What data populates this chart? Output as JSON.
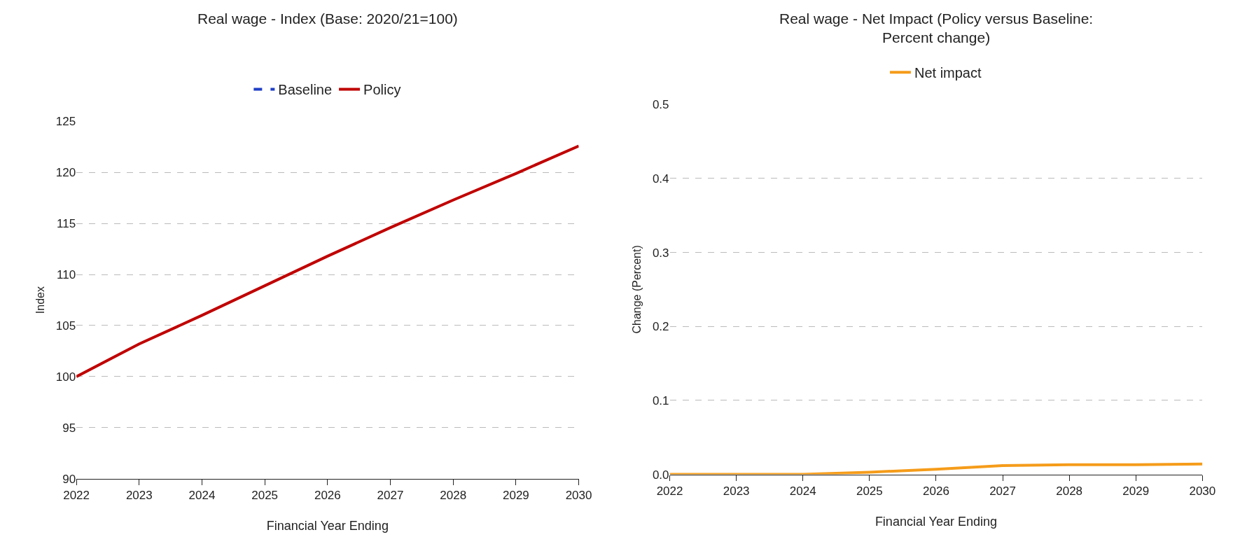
{
  "chart_data": [
    {
      "type": "line",
      "title": "Real wage - Index (Base: 2020/21=100)",
      "xlabel": "Financial Year Ending",
      "ylabel": "Index",
      "x": [
        2022,
        2023,
        2024,
        2025,
        2026,
        2027,
        2028,
        2029,
        2030
      ],
      "series": [
        {
          "name": "Baseline",
          "color": "#1f3fc6",
          "line_style": "dashed",
          "values": [
            null,
            null,
            null,
            null,
            null,
            null,
            null,
            null,
            null
          ]
        },
        {
          "name": "Policy",
          "color": "#c00000",
          "line_style": "solid",
          "values": [
            100,
            103.2,
            106.0,
            108.9,
            111.8,
            114.6,
            117.3,
            119.9,
            122.6
          ]
        }
      ],
      "xlim": [
        2022,
        2030
      ],
      "xticks": [
        2022,
        2023,
        2024,
        2025,
        2026,
        2027,
        2028,
        2029,
        2030
      ],
      "ylim": [
        90,
        125
      ],
      "yticks": [
        90,
        95,
        100,
        105,
        110,
        115,
        120,
        125
      ],
      "grid": "y",
      "legend": "top",
      "marker": "none"
    },
    {
      "type": "line",
      "title": "Real wage - Net Impact (Policy versus Baseline: Percent change)",
      "xlabel": "Financial Year Ending",
      "ylabel": "Change (Percent)",
      "x": [
        2022,
        2023,
        2024,
        2025,
        2026,
        2027,
        2028,
        2029,
        2030
      ],
      "series": [
        {
          "name": "Net impact",
          "color": "#f59c1a",
          "line_style": "solid",
          "values": [
            0,
            0,
            0,
            0.003,
            0.007,
            0.012,
            0.013,
            0.013,
            0.014
          ]
        }
      ],
      "xlim": [
        2022,
        2030
      ],
      "xticks": [
        2022,
        2023,
        2024,
        2025,
        2026,
        2027,
        2028,
        2029,
        2030
      ],
      "ylim": [
        0,
        0.5
      ],
      "yticks": [
        {
          "value": 0,
          "label": "0.0"
        },
        0.1,
        0.2,
        0.3,
        0.4,
        0.5
      ],
      "grid": "y",
      "legend": "top",
      "marker": "none"
    }
  ]
}
